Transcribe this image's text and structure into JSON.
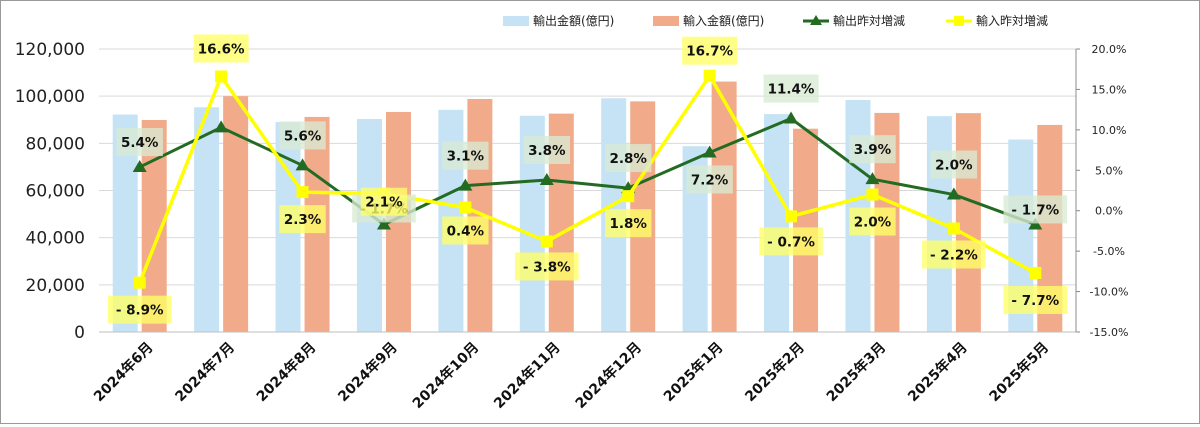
{
  "chart_data": {
    "type": "bar",
    "categories": [
      "2024年6月",
      "2024年7月",
      "2024年8月",
      "2024年9月",
      "2024年10月",
      "2024年11月",
      "2024年12月",
      "2025年1月",
      "2025年2月",
      "2025年3月",
      "2025年4月",
      "2025年5月"
    ],
    "series": [
      {
        "name": "輸出金額(億円)",
        "kind": "bar",
        "axis": "left",
        "color": "#c5e3f4",
        "values": [
          92200,
          95300,
          89000,
          90300,
          94200,
          91700,
          99100,
          78800,
          92400,
          98400,
          91500,
          81600
        ]
      },
      {
        "name": "輸入金額(億円)",
        "kind": "bar",
        "axis": "left",
        "color": "#f2ab8a",
        "values": [
          89900,
          100000,
          91200,
          93300,
          98800,
          92600,
          97800,
          106200,
          86200,
          92900,
          92800,
          87800
        ]
      },
      {
        "name": "輸出昨対増減",
        "kind": "line",
        "axis": "right",
        "color": "#236b23",
        "marker": "triangle",
        "values": [
          5.4,
          10.3,
          5.6,
          -1.7,
          3.1,
          3.8,
          2.8,
          7.2,
          11.4,
          3.9,
          2.0,
          -1.7
        ],
        "labels": [
          "5.4%",
          "",
          "5.6%",
          "- 1.7%",
          "3.1%",
          "3.8%",
          "2.8%",
          "7.2%",
          "11.4%",
          "3.9%",
          "2.0%",
          "- 1.7%"
        ]
      },
      {
        "name": "輸入昨対増減",
        "kind": "line",
        "axis": "right",
        "color": "#ffff00",
        "marker": "square",
        "values": [
          -8.9,
          16.6,
          2.3,
          2.1,
          0.4,
          -3.8,
          1.8,
          16.7,
          -0.7,
          2.0,
          -2.2,
          -7.7
        ],
        "labels": [
          "- 8.9%",
          "16.6%",
          "2.3%",
          "2.1%",
          "0.4%",
          "- 3.8%",
          "1.8%",
          "16.7%",
          "- 0.7%",
          "2.0%",
          "- 2.2%",
          "- 7.7%"
        ]
      }
    ],
    "ylim": [
      0,
      120000
    ],
    "y_ticks": [
      "0",
      "20,000",
      "40,000",
      "60,000",
      "80,000",
      "100,000",
      "120,000"
    ],
    "y2lim": [
      -15,
      20
    ],
    "y2_ticks": [
      "-15.0%",
      "-10.0%",
      "-5.0%",
      "0.0%",
      "5.0%",
      "10.0%",
      "15.0%",
      "20.0%"
    ],
    "grid": true,
    "legend_position": "top-right",
    "title": "",
    "xlabel": "",
    "ylabel": ""
  }
}
